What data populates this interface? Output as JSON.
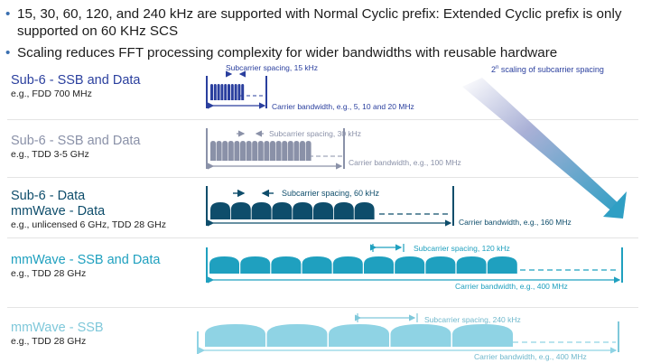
{
  "bullets": [
    "15, 30, 60, 120, and 240 kHz are supported with Normal Cyclic prefix: Extended Cyclic prefix is only supported on 60 KHz SCS",
    "Scaling reduces FFT processing complexity for wider bandwidths with reusable hardware"
  ],
  "scaling_label": {
    "prefix": "2",
    "sup": "n",
    "suffix": " scaling of subcarrier spacing"
  },
  "rows": [
    {
      "title": "Sub-6 - SSB and Data",
      "title2": "",
      "example": "e.g., FDD 700 MHz",
      "scs_label": "Subcarrier spacing, 15 kHz",
      "bw_label": "Carrier bandwidth, e.g., 5, 10 and 20 MHz",
      "color": "#2a3f9e",
      "title_color": "#2a3f9e"
    },
    {
      "title": "Sub-6 - SSB and Data",
      "title2": "",
      "example": "e.g., TDD 3-5 GHz",
      "scs_label": "Subcarrier spacing, 30 kHz",
      "bw_label": "Carrier bandwidth, e.g., 100 MHz",
      "color": "#8a91a8",
      "title_color": "#8a91a8"
    },
    {
      "title": "Sub-6 - Data",
      "title2": "mmWave - Data",
      "example": "e.g., unlicensed 6 GHz, TDD 28 GHz",
      "scs_label": "Subcarrier spacing, 60 kHz",
      "bw_label": "Carrier bandwidth, e.g., 160 MHz",
      "color": "#0e4d6b",
      "title_color": "#0e4d6b"
    },
    {
      "title": "mmWave - SSB and Data",
      "title2": "",
      "example": "e.g., TDD 28 GHz",
      "scs_label": "Subcarrier spacing, 120 kHz",
      "bw_label": "Carrier bandwidth, e.g., 400 MHz",
      "color": "#1fa0bf",
      "title_color": "#1fa0bf"
    },
    {
      "title": "mmWave - SSB",
      "title2": "",
      "example": "e.g., TDD 28 GHz",
      "scs_label": "Subcarrier spacing, 240 kHz",
      "bw_label": "Carrier bandwidth, e.g., 400 MHz",
      "color": "#8fd3e4",
      "title_color": "#7fc8da"
    }
  ]
}
